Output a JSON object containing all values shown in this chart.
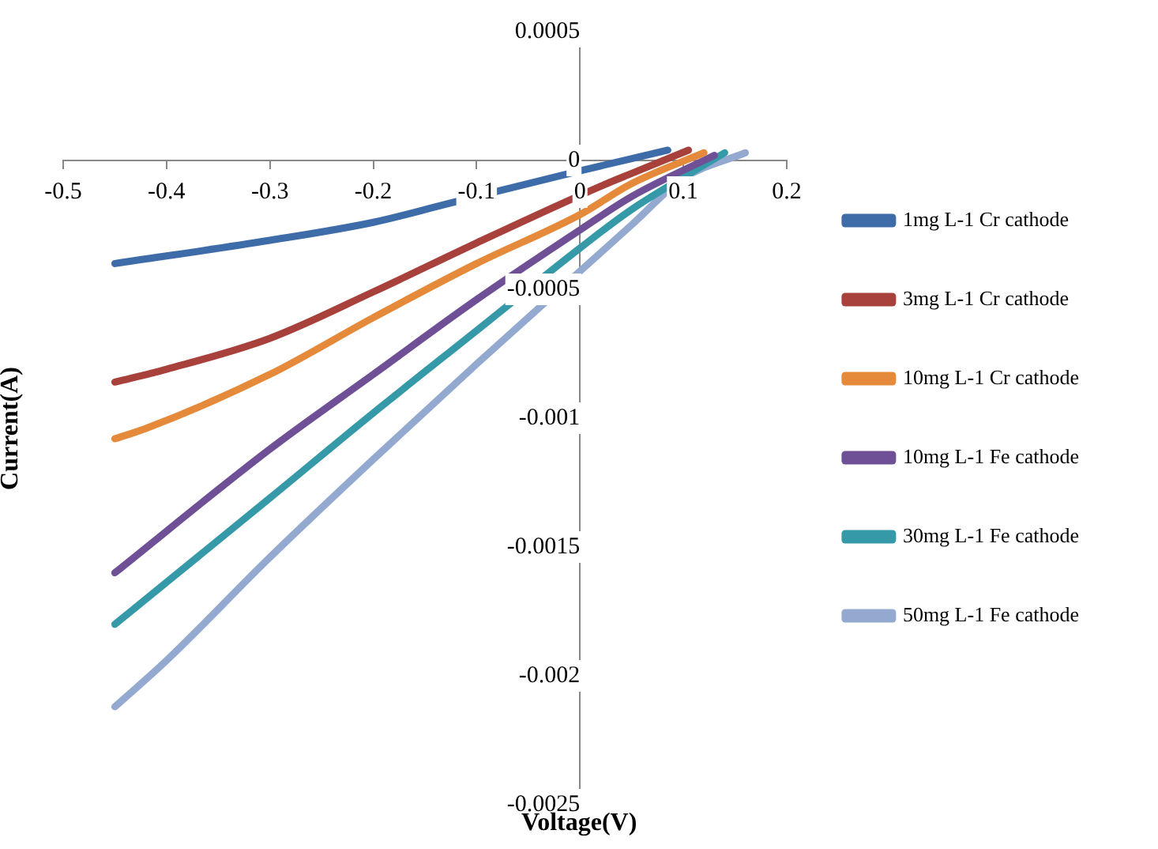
{
  "chart_data": {
    "type": "line",
    "xlabel": "Voltage(V)",
    "ylabel": "Current(A)",
    "xlim": [
      -0.5,
      0.2
    ],
    "xticks": [
      -0.5,
      -0.4,
      -0.3,
      -0.2,
      -0.1,
      0,
      0.1,
      0.2
    ],
    "ylim": [
      -0.0025,
      0.0005
    ],
    "yticks": [
      -0.0025,
      -0.002,
      -0.0015,
      -0.001,
      -0.0005,
      0,
      0.0005
    ],
    "grid": false,
    "legend": "right",
    "marker": "none",
    "series": [
      {
        "name": "1mg L-1 Cr cathode",
        "color": "#3d6ca8",
        "x": [
          -0.45,
          -0.3,
          -0.2,
          -0.13,
          0,
          0.085
        ],
        "values": [
          -0.0004,
          -0.00031,
          -0.00024,
          -0.00017,
          -4e-05,
          4e-05
        ]
      },
      {
        "name": "3mg L-1 Cr cathode",
        "color": "#a8403c",
        "x": [
          -0.45,
          -0.4,
          -0.3,
          -0.2,
          -0.1,
          0.02,
          0.05,
          0.105
        ],
        "values": [
          -0.00086,
          -0.00081,
          -0.00069,
          -0.00051,
          -0.00032,
          -0.0001,
          -5e-05,
          4e-05
        ]
      },
      {
        "name": "10mg L-1 Cr cathode",
        "color": "#e58a3a",
        "x": [
          -0.45,
          -0.42,
          -0.3,
          -0.2,
          -0.1,
          0,
          0.05,
          0.12
        ],
        "values": [
          -0.00108,
          -0.00104,
          -0.00083,
          -0.00061,
          -0.0004,
          -0.00021,
          -9e-05,
          3e-05
        ]
      },
      {
        "name": "10mg L-1 Fe cathode",
        "color": "#6f4f95",
        "x": [
          -0.45,
          -0.3,
          -0.2,
          -0.1,
          0,
          0.05,
          0.13
        ],
        "values": [
          -0.0016,
          -0.00112,
          -0.00083,
          -0.00054,
          -0.00027,
          -0.00014,
          2e-05
        ]
      },
      {
        "name": "30mg L-1 Fe cathode",
        "color": "#3699a8",
        "x": [
          -0.45,
          -0.3,
          -0.2,
          -0.1,
          0,
          0.05,
          0.14
        ],
        "values": [
          -0.0018,
          -0.00131,
          -0.00098,
          -0.00066,
          -0.00034,
          -0.00019,
          3e-05
        ]
      },
      {
        "name": "50mg L-1 Fe cathode",
        "color": "#93a9d0",
        "x": [
          -0.45,
          -0.4,
          -0.3,
          -0.2,
          -0.1,
          0,
          0.05,
          0.1,
          0.16
        ],
        "values": [
          -0.00212,
          -0.00194,
          -0.00154,
          -0.00116,
          -0.00079,
          -0.00043,
          -0.00025,
          -7e-05,
          3e-05
        ]
      }
    ]
  }
}
